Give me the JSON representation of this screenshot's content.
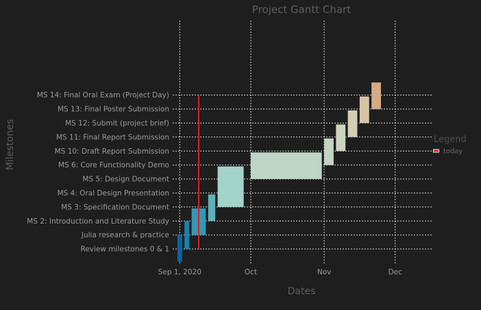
{
  "chart_data": {
    "type": "gantt",
    "title": "Project Gantt Chart",
    "xlabel": "Dates",
    "ylabel": "Milestones",
    "x_ticks": [
      {
        "date": "2020-09-01",
        "label": "Sep 1, 2020"
      },
      {
        "date": "2020-10-01",
        "label": "Oct"
      },
      {
        "date": "2020-11-01",
        "label": "Nov"
      },
      {
        "date": "2020-12-01",
        "label": "Dec"
      }
    ],
    "xlim": [
      "2020-08-29",
      "2020-12-17"
    ],
    "categories": [
      "Review milestones 0 & 1",
      "Julia research & practice",
      "MS 2: Introduction and Literature Study",
      "MS 3: Specification Document",
      "MS 4: Oral Design Presentation",
      "MS 5: Design Document",
      "MS 6: Core Functionality Demo",
      "MS 10: Draft Report Submission",
      "MS 11: Final Report Submission",
      "MS 12: Submit (project brief)",
      "MS 13: Final Poster Submission",
      "MS 14: Final Oral Exam (Project Day)"
    ],
    "tasks": [
      {
        "name": "Review milestones 0 & 1",
        "start": "2020-08-31",
        "end": "2020-09-02",
        "row_bottom": -0.9,
        "row_top": 1.0,
        "color": "#0a66a0"
      },
      {
        "name": "Julia research & practice",
        "start": "2020-09-03",
        "end": "2020-09-05",
        "row_bottom": 0.0,
        "row_top": 2.0,
        "color": "#1a80ac"
      },
      {
        "name": "MS 2: Introduction and Literature Study",
        "start": "2020-09-06",
        "end": "2020-09-12",
        "row_bottom": 1.0,
        "row_top": 2.9,
        "color": "#3497b5"
      },
      {
        "name": "MS 3: Specification Document",
        "start": "2020-09-13",
        "end": "2020-09-16",
        "row_bottom": 2.0,
        "row_top": 3.9,
        "color": "#60b1bb"
      },
      {
        "name": "MS 4: Oral Design Presentation",
        "start": "2020-09-17",
        "end": "2020-09-28",
        "row_bottom": 3.0,
        "row_top": 5.9,
        "color": "#a3d3c8"
      },
      {
        "name": "MS 5: Design Document",
        "start": "2020-10-01",
        "end": "2020-10-31",
        "row_bottom": 5.0,
        "row_top": 6.9,
        "color": "#bed4c6"
      },
      {
        "name": "MS 6: Core Functionality Demo",
        "start": "2020-11-01",
        "end": "2020-11-05",
        "row_bottom": 6.0,
        "row_top": 7.9,
        "color": "#c4d4c2"
      },
      {
        "name": "MS 10: Draft Report Submission",
        "start": "2020-11-06",
        "end": "2020-11-10",
        "row_bottom": 7.0,
        "row_top": 8.9,
        "color": "#ccd4bd"
      },
      {
        "name": "MS 11: Final Report Submission",
        "start": "2020-11-11",
        "end": "2020-11-15",
        "row_bottom": 8.0,
        "row_top": 9.9,
        "color": "#d3ceb3"
      },
      {
        "name": "MS 12: Submit (project brief)",
        "start": "2020-11-16",
        "end": "2020-11-20",
        "row_bottom": 9.0,
        "row_top": 10.9,
        "color": "#d7c5a6"
      },
      {
        "name": "MS 13: Final Poster Submission",
        "start": "2020-11-21",
        "end": "2020-11-25",
        "row_bottom": 10.0,
        "row_top": 11.9,
        "color": "#d4aa87"
      }
    ],
    "today": {
      "date": "2020-09-09",
      "row_from": 0,
      "row_to": 11,
      "color": "#d42222"
    },
    "legend": {
      "title": "Legend",
      "entries": [
        {
          "label": "today",
          "color": "#d42222"
        }
      ],
      "placement": "right"
    },
    "grid": true
  }
}
